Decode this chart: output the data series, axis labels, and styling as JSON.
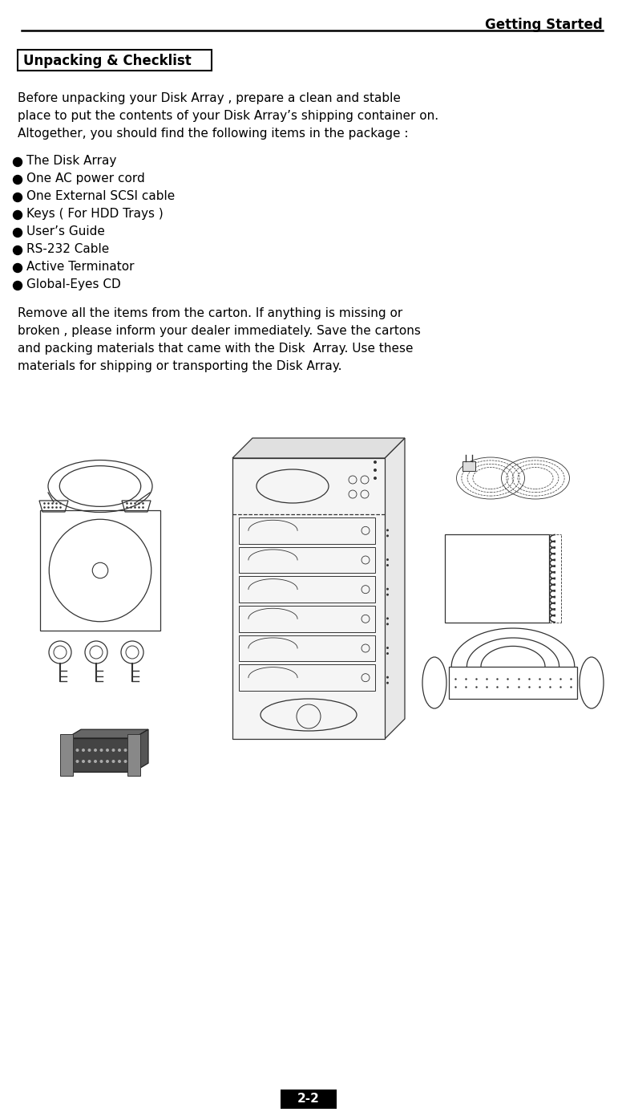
{
  "header_text": "Getting Started",
  "section_title": "Unpacking & Checklist",
  "intro_text": "Before unpacking your Disk Array , prepare a clean and stable\nplace to put the contents of your Disk Array’s shipping container on.\nAltogether, you should find the following items in the package :",
  "bullet_items": [
    "The Disk Array",
    "One AC power cord",
    "One External SCSI cable",
    "Keys ( For HDD Trays )",
    "User’s Guide",
    "RS-232 Cable",
    "Active Terminator",
    "Global-Eyes CD"
  ],
  "closing_text": "Remove all the items from the carton. If anything is missing or\nbroken , please inform your dealer immediately. Save the cartons\nand packing materials that came with the Disk  Array. Use these\nmaterials for shipping or transporting the Disk Array.",
  "page_number": "2-2",
  "bg_color": "#ffffff",
  "text_color": "#000000",
  "header_fontsize": 12,
  "title_fontsize": 12,
  "body_fontsize": 11,
  "bullet_fontsize": 11,
  "page_num_fontsize": 11
}
